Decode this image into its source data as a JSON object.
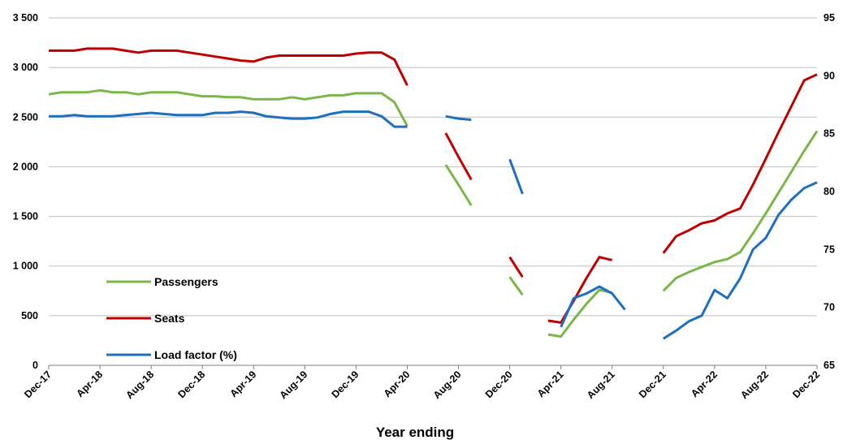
{
  "chart_data": {
    "type": "line",
    "xlabel": "Year ending",
    "x": [
      "Dec-17",
      "Jan-18",
      "Feb-18",
      "Mar-18",
      "Apr-18",
      "May-18",
      "Jun-18",
      "Jul-18",
      "Aug-18",
      "Sep-18",
      "Oct-18",
      "Nov-18",
      "Dec-18",
      "Jan-19",
      "Feb-19",
      "Mar-19",
      "Apr-19",
      "May-19",
      "Jun-19",
      "Jul-19",
      "Aug-19",
      "Sep-19",
      "Oct-19",
      "Nov-19",
      "Dec-19",
      "Jan-20",
      "Feb-20",
      "Mar-20",
      "Apr-20",
      "May-20",
      "Jun-20",
      "Jul-20",
      "Aug-20",
      "Sep-20",
      "Oct-20",
      "Nov-20",
      "Dec-20",
      "Jan-21",
      "Feb-21",
      "Mar-21",
      "Apr-21",
      "May-21",
      "Jun-21",
      "Jul-21",
      "Aug-21",
      "Sep-21",
      "Oct-21",
      "Nov-21",
      "Dec-21",
      "Jan-22",
      "Feb-22",
      "Mar-22",
      "Apr-22",
      "May-22",
      "Jun-22",
      "Jul-22",
      "Aug-22",
      "Sep-22",
      "Oct-22",
      "Nov-22",
      "Dec-22"
    ],
    "x_tick_labels": [
      "Dec-17",
      "Apr-18",
      "Aug-18",
      "Dec-18",
      "Apr-19",
      "Aug-19",
      "Dec-19",
      "Apr-20",
      "Aug-20",
      "Dec-20",
      "Apr-21",
      "Aug-21",
      "Dec-21",
      "Apr-22",
      "Aug-22",
      "Dec-22"
    ],
    "left_axis": {
      "ylim": [
        0,
        3500
      ],
      "ticks": [
        0,
        500,
        1000,
        1500,
        2000,
        2500,
        3000,
        3500
      ],
      "tick_labels": [
        "0",
        "500",
        "1 000",
        "1 500",
        "2 000",
        "2 500",
        "3 000",
        "3 500"
      ]
    },
    "right_axis": {
      "ylim": [
        65,
        95
      ],
      "ticks": [
        65,
        70,
        75,
        80,
        85,
        90,
        95
      ],
      "tick_labels": [
        "65",
        "70",
        "75",
        "80",
        "85",
        "90",
        "95"
      ]
    },
    "grid": "horizontal",
    "legend_position": "bottom-left",
    "series": [
      {
        "name": "Passengers",
        "color": "#7AB648",
        "axis": "left",
        "values": [
          2730,
          2750,
          2750,
          2750,
          2770,
          2750,
          2750,
          2730,
          2750,
          2750,
          2750,
          2730,
          2710,
          2710,
          2700,
          2700,
          2680,
          2680,
          2680,
          2700,
          2680,
          2700,
          2720,
          2720,
          2740,
          2740,
          2740,
          2650,
          2410,
          null,
          null,
          2020,
          1820,
          1610,
          null,
          null,
          890,
          710,
          null,
          310,
          290,
          460,
          620,
          760,
          730,
          null,
          null,
          null,
          750,
          880,
          940,
          990,
          1040,
          1070,
          1140,
          1330,
          1530,
          1740,
          1950,
          2160,
          2360
        ]
      },
      {
        "name": "Seats",
        "color": "#C00000",
        "axis": "left",
        "values": [
          3170,
          3170,
          3170,
          3190,
          3190,
          3190,
          3170,
          3150,
          3170,
          3170,
          3170,
          3150,
          3130,
          3110,
          3090,
          3070,
          3060,
          3100,
          3120,
          3120,
          3120,
          3120,
          3120,
          3120,
          3140,
          3150,
          3150,
          3080,
          2820,
          null,
          null,
          2340,
          2100,
          1870,
          null,
          null,
          1090,
          890,
          null,
          450,
          430,
          650,
          880,
          1090,
          1060,
          null,
          null,
          null,
          1130,
          1300,
          1360,
          1430,
          1460,
          1530,
          1580,
          1820,
          2080,
          2350,
          2610,
          2870,
          2930
        ]
      },
      {
        "name": "Load factor (%)",
        "color": "#1F6FBF",
        "axis": "right",
        "values": [
          86.5,
          86.5,
          86.6,
          86.5,
          86.5,
          86.5,
          86.6,
          86.7,
          86.8,
          86.7,
          86.6,
          86.6,
          86.6,
          86.8,
          86.8,
          86.9,
          86.8,
          86.5,
          86.4,
          86.3,
          86.3,
          86.4,
          86.7,
          86.9,
          86.9,
          86.9,
          86.5,
          85.6,
          85.6,
          null,
          null,
          86.5,
          86.3,
          86.2,
          null,
          null,
          82.8,
          79.8,
          null,
          null,
          68.3,
          70.8,
          71.2,
          71.8,
          71.2,
          69.8,
          null,
          null,
          67.3,
          68.0,
          68.8,
          69.3,
          71.5,
          70.8,
          72.5,
          75.0,
          76.0,
          78.0,
          79.3,
          80.3,
          80.8
        ]
      }
    ]
  }
}
